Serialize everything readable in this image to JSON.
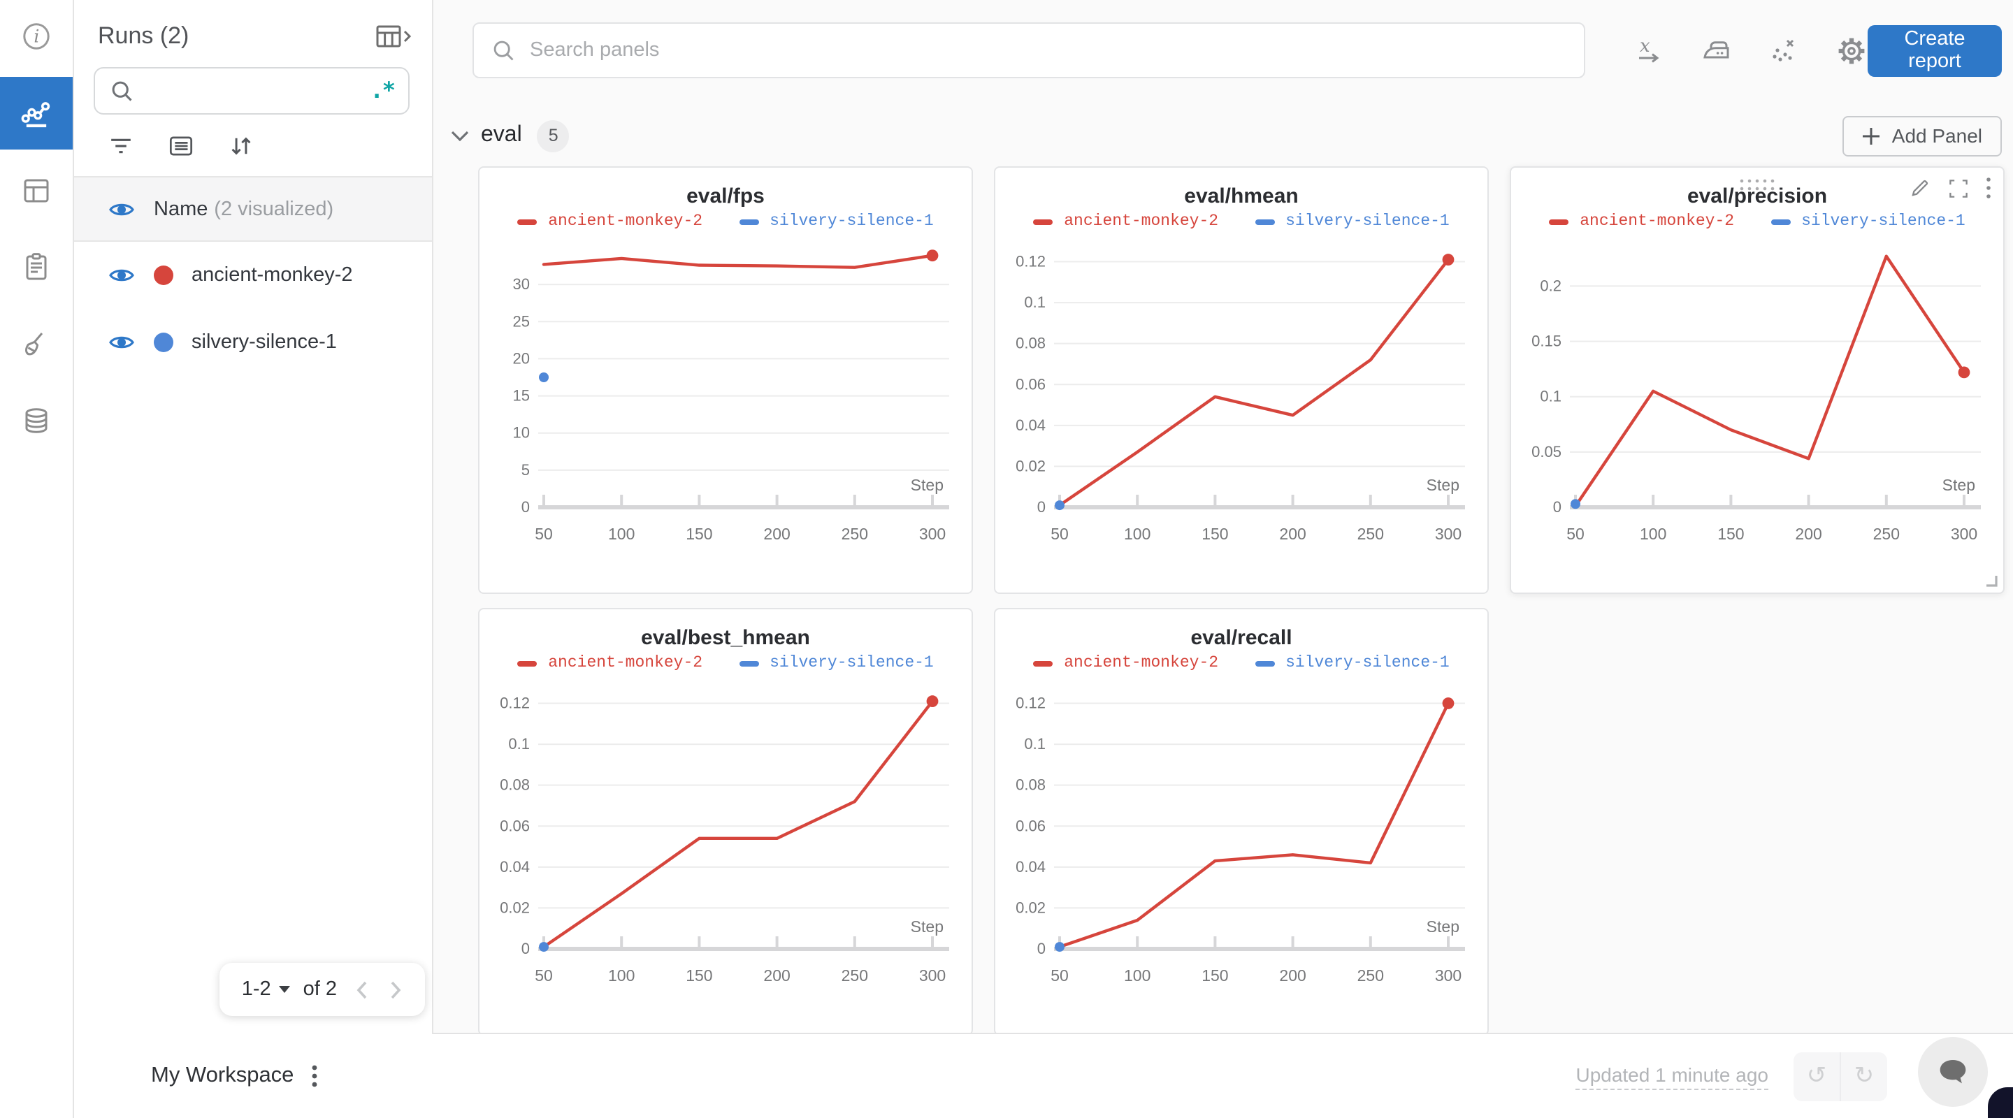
{
  "colors": {
    "accent_blue": "#2e78c8",
    "run_red": "#d6453c",
    "run_blue": "#4f87d7",
    "teal": "#0ea5a5"
  },
  "rail": {
    "icons": [
      "info-icon",
      "line-chart-icon",
      "table-icon",
      "clipboard-icon",
      "brush-icon",
      "database-icon"
    ],
    "active_index": 1
  },
  "runs_panel": {
    "title": "Runs (2)",
    "search_placeholder": "",
    "regex_glyph": ".*",
    "toolbar_icons": [
      "filter-icon",
      "list-icon",
      "sort-icon"
    ],
    "name_row": {
      "label": "Name",
      "suffix": "(2 visualized)"
    },
    "runs": [
      {
        "name": "ancient-monkey-2",
        "color": "#d6453c"
      },
      {
        "name": "silvery-silence-1",
        "color": "#4f87d7"
      }
    ],
    "pagination": {
      "range": "1-2",
      "of": "of 2"
    }
  },
  "topbar": {
    "search_placeholder": "Search panels",
    "icons": [
      "x-axis-icon",
      "smoothing-iron-icon",
      "outlier-scatter-icon",
      "settings-gear-icon"
    ],
    "create_report_label": "Create report"
  },
  "section": {
    "name": "eval",
    "count": "5",
    "add_panel_label": "Add Panel"
  },
  "bottombar": {
    "workspace_label": "My Workspace",
    "updated_label": "Updated 1 minute ago"
  },
  "chart_data": [
    {
      "type": "line",
      "title": "eval/fps",
      "xlabel": "Step",
      "x_ticks": [
        50,
        100,
        150,
        200,
        250,
        300
      ],
      "xlim": [
        50,
        300
      ],
      "ylim": [
        0,
        35
      ],
      "y_ticks": [
        0,
        5,
        10,
        15,
        20,
        25,
        30
      ],
      "legend_position": "top",
      "grid": true,
      "series": [
        {
          "name": "ancient-monkey-2",
          "color": "#d6453c",
          "x": [
            50,
            100,
            150,
            200,
            250,
            300
          ],
          "y": [
            32.7,
            33.5,
            32.6,
            32.5,
            32.3,
            33.9
          ],
          "end_dot": true
        },
        {
          "name": "silvery-silence-1",
          "color": "#4f87d7",
          "x": [
            50
          ],
          "y": [
            17.5
          ],
          "point_only": true
        }
      ],
      "hover_controls": false
    },
    {
      "type": "line",
      "title": "eval/hmean",
      "xlabel": "Step",
      "x_ticks": [
        50,
        100,
        150,
        200,
        250,
        300
      ],
      "xlim": [
        50,
        300
      ],
      "ylim": [
        0,
        0.127
      ],
      "y_ticks": [
        0,
        0.02,
        0.04,
        0.06,
        0.08,
        0.1,
        0.12
      ],
      "legend_position": "top",
      "grid": true,
      "series": [
        {
          "name": "ancient-monkey-2",
          "color": "#d6453c",
          "x": [
            50,
            100,
            150,
            200,
            250,
            300
          ],
          "y": [
            0.001,
            0.027,
            0.054,
            0.045,
            0.072,
            0.121
          ],
          "end_dot": true
        },
        {
          "name": "silvery-silence-1",
          "color": "#4f87d7",
          "x": [
            50
          ],
          "y": [
            0.001
          ],
          "point_only": true
        }
      ],
      "hover_controls": false
    },
    {
      "type": "line",
      "title": "eval/precision",
      "xlabel": "Step",
      "x_ticks": [
        50,
        100,
        150,
        200,
        250,
        300
      ],
      "xlim": [
        50,
        300
      ],
      "ylim": [
        0,
        0.235
      ],
      "y_ticks": [
        0,
        0.05,
        0.1,
        0.15,
        0.2
      ],
      "legend_position": "top",
      "grid": true,
      "series": [
        {
          "name": "ancient-monkey-2",
          "color": "#d6453c",
          "x": [
            50,
            100,
            150,
            200,
            250,
            300
          ],
          "y": [
            0.001,
            0.105,
            0.07,
            0.044,
            0.227,
            0.122
          ],
          "end_dot": true
        },
        {
          "name": "silvery-silence-1",
          "color": "#4f87d7",
          "x": [
            50
          ],
          "y": [
            0.003
          ],
          "point_only": true
        }
      ],
      "hover_controls": true
    },
    {
      "type": "line",
      "title": "eval/best_hmean",
      "xlabel": "Step",
      "x_ticks": [
        50,
        100,
        150,
        200,
        250,
        300
      ],
      "xlim": [
        50,
        300
      ],
      "ylim": [
        0,
        0.127
      ],
      "y_ticks": [
        0,
        0.02,
        0.04,
        0.06,
        0.08,
        0.1,
        0.12
      ],
      "legend_position": "top",
      "grid": true,
      "series": [
        {
          "name": "ancient-monkey-2",
          "color": "#d6453c",
          "x": [
            50,
            100,
            150,
            200,
            250,
            300
          ],
          "y": [
            0.001,
            0.027,
            0.054,
            0.054,
            0.072,
            0.121
          ],
          "end_dot": true
        },
        {
          "name": "silvery-silence-1",
          "color": "#4f87d7",
          "x": [
            50
          ],
          "y": [
            0.001
          ],
          "point_only": true
        }
      ],
      "hover_controls": false
    },
    {
      "type": "line",
      "title": "eval/recall",
      "xlabel": "Step",
      "x_ticks": [
        50,
        100,
        150,
        200,
        250,
        300
      ],
      "xlim": [
        50,
        300
      ],
      "ylim": [
        0,
        0.127
      ],
      "y_ticks": [
        0,
        0.02,
        0.04,
        0.06,
        0.08,
        0.1,
        0.12
      ],
      "legend_position": "top",
      "grid": true,
      "series": [
        {
          "name": "ancient-monkey-2",
          "color": "#d6453c",
          "x": [
            50,
            100,
            150,
            200,
            250,
            300
          ],
          "y": [
            0.001,
            0.014,
            0.043,
            0.046,
            0.042,
            0.12
          ],
          "end_dot": true
        },
        {
          "name": "silvery-silence-1",
          "color": "#4f87d7",
          "x": [
            50
          ],
          "y": [
            0.001
          ],
          "point_only": true
        }
      ],
      "hover_controls": false
    }
  ]
}
